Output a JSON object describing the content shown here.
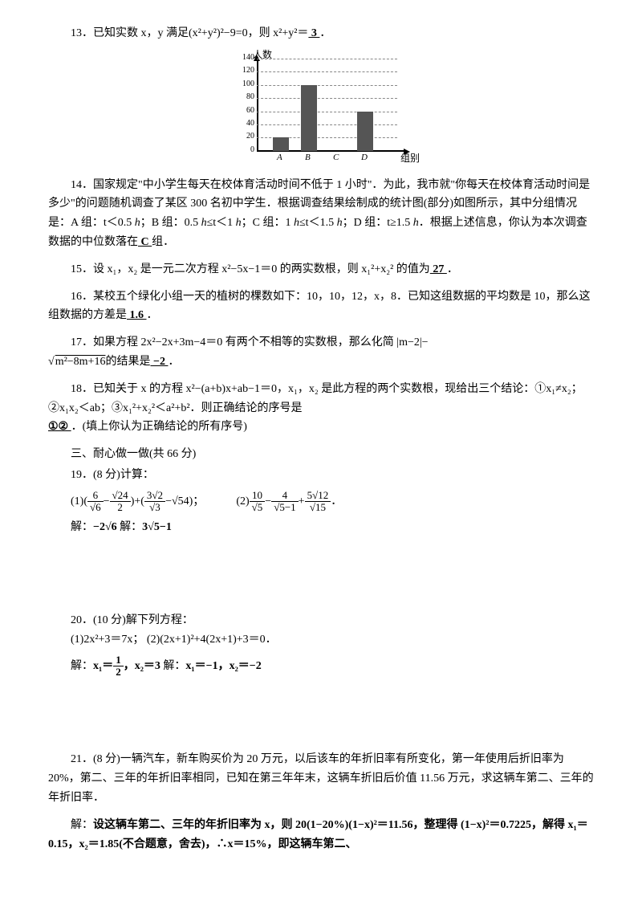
{
  "q13": {
    "label": "13．",
    "text": "已知实数 x，y 满足(x²+y²)²−9=0，则 x²+y²＝",
    "ans": "  3  ",
    "period": "．"
  },
  "chart": {
    "y_title": "人数",
    "x_title": "组别",
    "y_ticks": [
      "0",
      "20",
      "40",
      "60",
      "80",
      "100",
      "120",
      "140"
    ],
    "y_max": 140,
    "bars": [
      {
        "label": "A",
        "value": 20,
        "x": 55
      },
      {
        "label": "B",
        "value": 100,
        "x": 90
      },
      {
        "label": "C",
        "value": 0,
        "x": 125
      },
      {
        "label": "D",
        "value": 60,
        "x": 160
      }
    ],
    "bar_color": "#555555",
    "grid_color": "#888888",
    "axis_color": "#000000"
  },
  "q14": {
    "label": "14．",
    "text1": "国家规定\"中小学生每天在校体育活动时间不低于 1 小时\"．为此，我市就\"你每天在校体育活动时间是多少\"的问题随机调查了某区 300 名初中学生．根据调查结果绘制成的统计图(部分)如图所示，其中分组情况是：A 组：t＜0.5 ",
    "h1": "h",
    "text2": "；B 组：0.5 ",
    "h2": "h",
    "text3": "≤t＜1 ",
    "h3": "h",
    "text4": "；C 组：1 ",
    "h4": "h",
    "text5": "≤t＜1.5 ",
    "h5": "h",
    "text6": "；D 组：t≥1.5 ",
    "h6": "h",
    "text7": "．根据上述信息，你认为本次调查数据的中位数落在",
    "ans": "  C  ",
    "text8": "组．"
  },
  "q15": {
    "label": "15．",
    "text": "设 x₁，x₂ 是一元二次方程 x²−5x−1＝0 的两实数根，则 x₁²+x₂² 的值为",
    "ans": "  27  ",
    "period": "．"
  },
  "q16": {
    "label": "16．",
    "text1": "某校五个绿化小组一天的植树的棵数如下：10，10，12，x，8．已知这组数据的平均数是 10，那么这组数据的方差是",
    "ans": "  1.6  ",
    "period": "．"
  },
  "q17": {
    "label": "17．",
    "text1": "如果方程 2x²−2x+3m−4＝0 有两个不相等的实数根，那么化简 |m−2|−",
    "sqrt": "m²−8m+16",
    "text2": "的结果是",
    "ans": "  −2  ",
    "period": "．"
  },
  "q18": {
    "label": "18．",
    "text1": "已知关于 x 的方程 x²−(a+b)x+ab−1＝0，x₁，x₂ 是此方程的两个实数根，现给出三个结论：①x₁≠x₂；②x₁x₂＜ab；③x₁²+x₂²＜a²+b²．则正确结论的序号是",
    "ans": "  ①②  ",
    "text2": "．(填上你认为正确结论的所有序号)"
  },
  "section3": "三、耐心做一做(共 66 分)",
  "q19": {
    "label": "19．",
    "title": "(8 分)计算：",
    "e1_pre": "(1)(",
    "e1_f1_num": "6",
    "e1_f1_den": "√6",
    "e1_mid1": "−",
    "e1_f2_num": "√24",
    "e1_f2_den": "2",
    "e1_mid2": ")+(",
    "e1_f3_num": "3√2",
    "e1_f3_den": "√3",
    "e1_mid3": "−√54)；",
    "e2_pre": "(2)",
    "e2_f1_num": "10",
    "e2_f1_den": "√5",
    "e2_m1": "−",
    "e2_f2_num": "4",
    "e2_f2_den": "√5−1",
    "e2_m2": "+",
    "e2_f3_num": "5√12",
    "e2_f3_den": "√15",
    "e2_end": "．",
    "sol1_label": "解：",
    "sol1": "−2√6",
    "sol2_label": "  解：",
    "sol2": "3√5−1"
  },
  "q20": {
    "label": "20．",
    "title": "(10 分)解下列方程：",
    "eq1": "(1)2x²+3＝7x；",
    "eq2": "(2)(2x+1)²+4(2x+1)+3＝0．",
    "sol_label": "解：",
    "s1a": "x₁＝",
    "s1a_num": "1",
    "s1a_den": "2",
    "s1b": "，x₂＝3",
    "sol2_label": "  解：",
    "s2": "x₁＝−1，x₂＝−2"
  },
  "q21": {
    "label": "21．",
    "text": "(8 分)一辆汽车，新车购买价为 20 万元，以后该车的年折旧率有所变化，第一年使用后折旧率为 20%，第二、三年的年折旧率相同，已知在第三年年末，这辆车折旧后价值 11.56 万元，求这辆车第二、三年的年折旧率．",
    "sol_label": "解：",
    "sol": "设这辆车第二、三年的年折旧率为 x，则 20(1−20%)(1−x)²＝11.56，整理得 (1−x)²＝0.7225，解得 x₁＝0.15，x₂＝1.85(不合题意，舍去)，∴x＝15%，即这辆车第二、"
  }
}
